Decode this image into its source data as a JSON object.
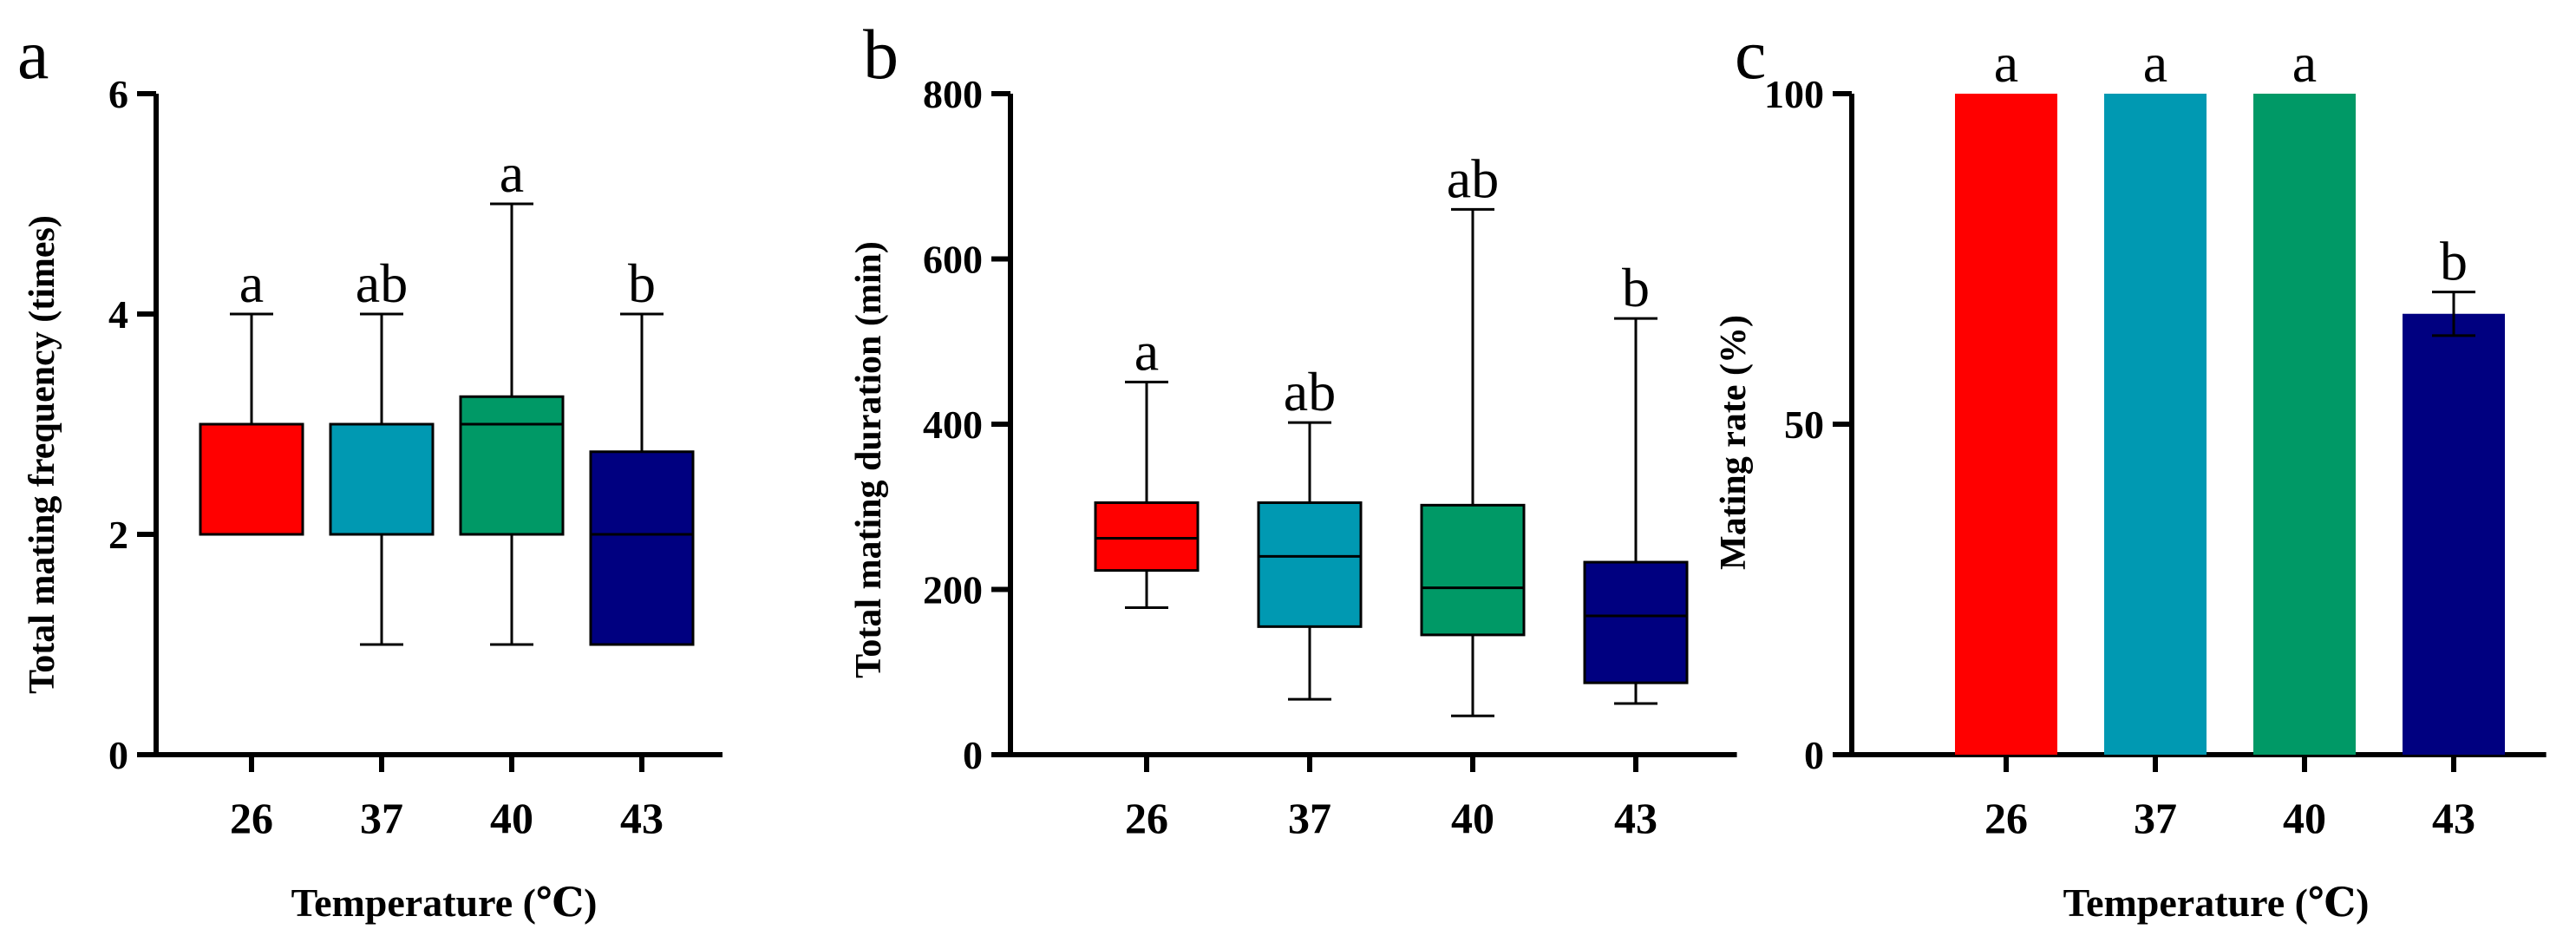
{
  "figure": {
    "colors": [
      "#ff0000",
      "#0099b2",
      "#009966",
      "#000080"
    ]
  },
  "chart_data": [
    {
      "panel": "a",
      "type": "box",
      "title": "",
      "xlabel": "Temperature (℃)",
      "ylabel": "Total mating frequency (times)",
      "categories": [
        "26",
        "37",
        "40",
        "43"
      ],
      "ylim": [
        0,
        6
      ],
      "yticks": [
        "0",
        "2",
        "4",
        "6"
      ],
      "series": [
        {
          "name": "26",
          "min": 2,
          "q1": 2,
          "median": 3,
          "q3": 3,
          "max": 4,
          "letter": "a"
        },
        {
          "name": "37",
          "min": 1,
          "q1": 2,
          "median": 2,
          "q3": 3,
          "max": 4,
          "letter": "ab"
        },
        {
          "name": "40",
          "min": 1,
          "q1": 2,
          "median": 3,
          "q3": 3.25,
          "max": 5,
          "letter": "a"
        },
        {
          "name": "43",
          "min": 1,
          "q1": 1,
          "median": 2,
          "q3": 2.75,
          "max": 4,
          "letter": "b"
        }
      ]
    },
    {
      "panel": "b",
      "type": "box",
      "title": "",
      "xlabel": "",
      "ylabel": "Total mating duration (min)",
      "categories": [
        "26",
        "37",
        "40",
        "43"
      ],
      "ylim": [
        0,
        800
      ],
      "yticks": [
        "0",
        "200",
        "400",
        "600",
        "800"
      ],
      "series": [
        {
          "name": "26",
          "min": 178,
          "q1": 223,
          "median": 262,
          "q3": 305,
          "max": 451,
          "letter": "a"
        },
        {
          "name": "37",
          "min": 67,
          "q1": 155,
          "median": 240,
          "q3": 305,
          "max": 402,
          "letter": "ab"
        },
        {
          "name": "40",
          "min": 47,
          "q1": 145,
          "median": 202,
          "q3": 302,
          "max": 660,
          "letter": "ab"
        },
        {
          "name": "43",
          "min": 62,
          "q1": 87,
          "median": 168,
          "q3": 233,
          "max": 528,
          "letter": "b"
        }
      ]
    },
    {
      "panel": "c",
      "type": "bar",
      "title": "",
      "xlabel": "Temperature (℃)",
      "ylabel": "Mating rate (%)",
      "categories": [
        "26",
        "37",
        "40",
        "43"
      ],
      "ylim": [
        0,
        100
      ],
      "yticks": [
        "0",
        "50",
        "100"
      ],
      "values": [
        100,
        100,
        100,
        66.7
      ],
      "errors": [
        0,
        0,
        0,
        3.3
      ],
      "letters": [
        "a",
        "a",
        "a",
        "b"
      ]
    }
  ]
}
